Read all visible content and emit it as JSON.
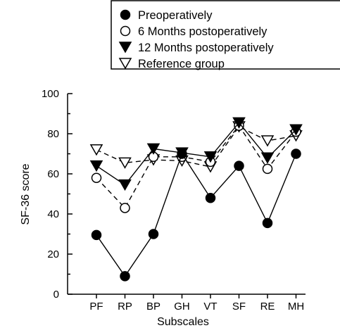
{
  "chart_data": {
    "type": "line",
    "xlabel": "Subscales",
    "ylabel": "SF-36 score",
    "ylim": [
      0,
      100
    ],
    "yticks": [
      "0",
      "20",
      "40",
      "60",
      "80",
      "100"
    ],
    "categories": [
      "PF",
      "RP",
      "BP",
      "GH",
      "VT",
      "SF",
      "RE",
      "MH"
    ],
    "grid": false,
    "legend_position": "top",
    "series": [
      {
        "name": "Preoperatively",
        "marker": "filled-circle",
        "line": "solid",
        "values": [
          29.5,
          9,
          30,
          70,
          48,
          64,
          35.5,
          70
        ]
      },
      {
        "name": "6 Months postoperatively",
        "marker": "open-circle",
        "line": "dashed",
        "values": [
          58,
          43,
          68.5,
          68.5,
          66,
          84,
          62.5,
          81
        ]
      },
      {
        "name": "12 Months postoperatively",
        "marker": "filled-triangle-down",
        "line": "solid",
        "values": [
          64,
          54.5,
          72.5,
          70.5,
          68.5,
          85.5,
          68,
          82
        ]
      },
      {
        "name": "Reference group",
        "marker": "open-triangle-down",
        "line": "dashed",
        "values": [
          72,
          65.5,
          67,
          66.5,
          63.5,
          83.5,
          76.5,
          79
        ]
      }
    ]
  }
}
